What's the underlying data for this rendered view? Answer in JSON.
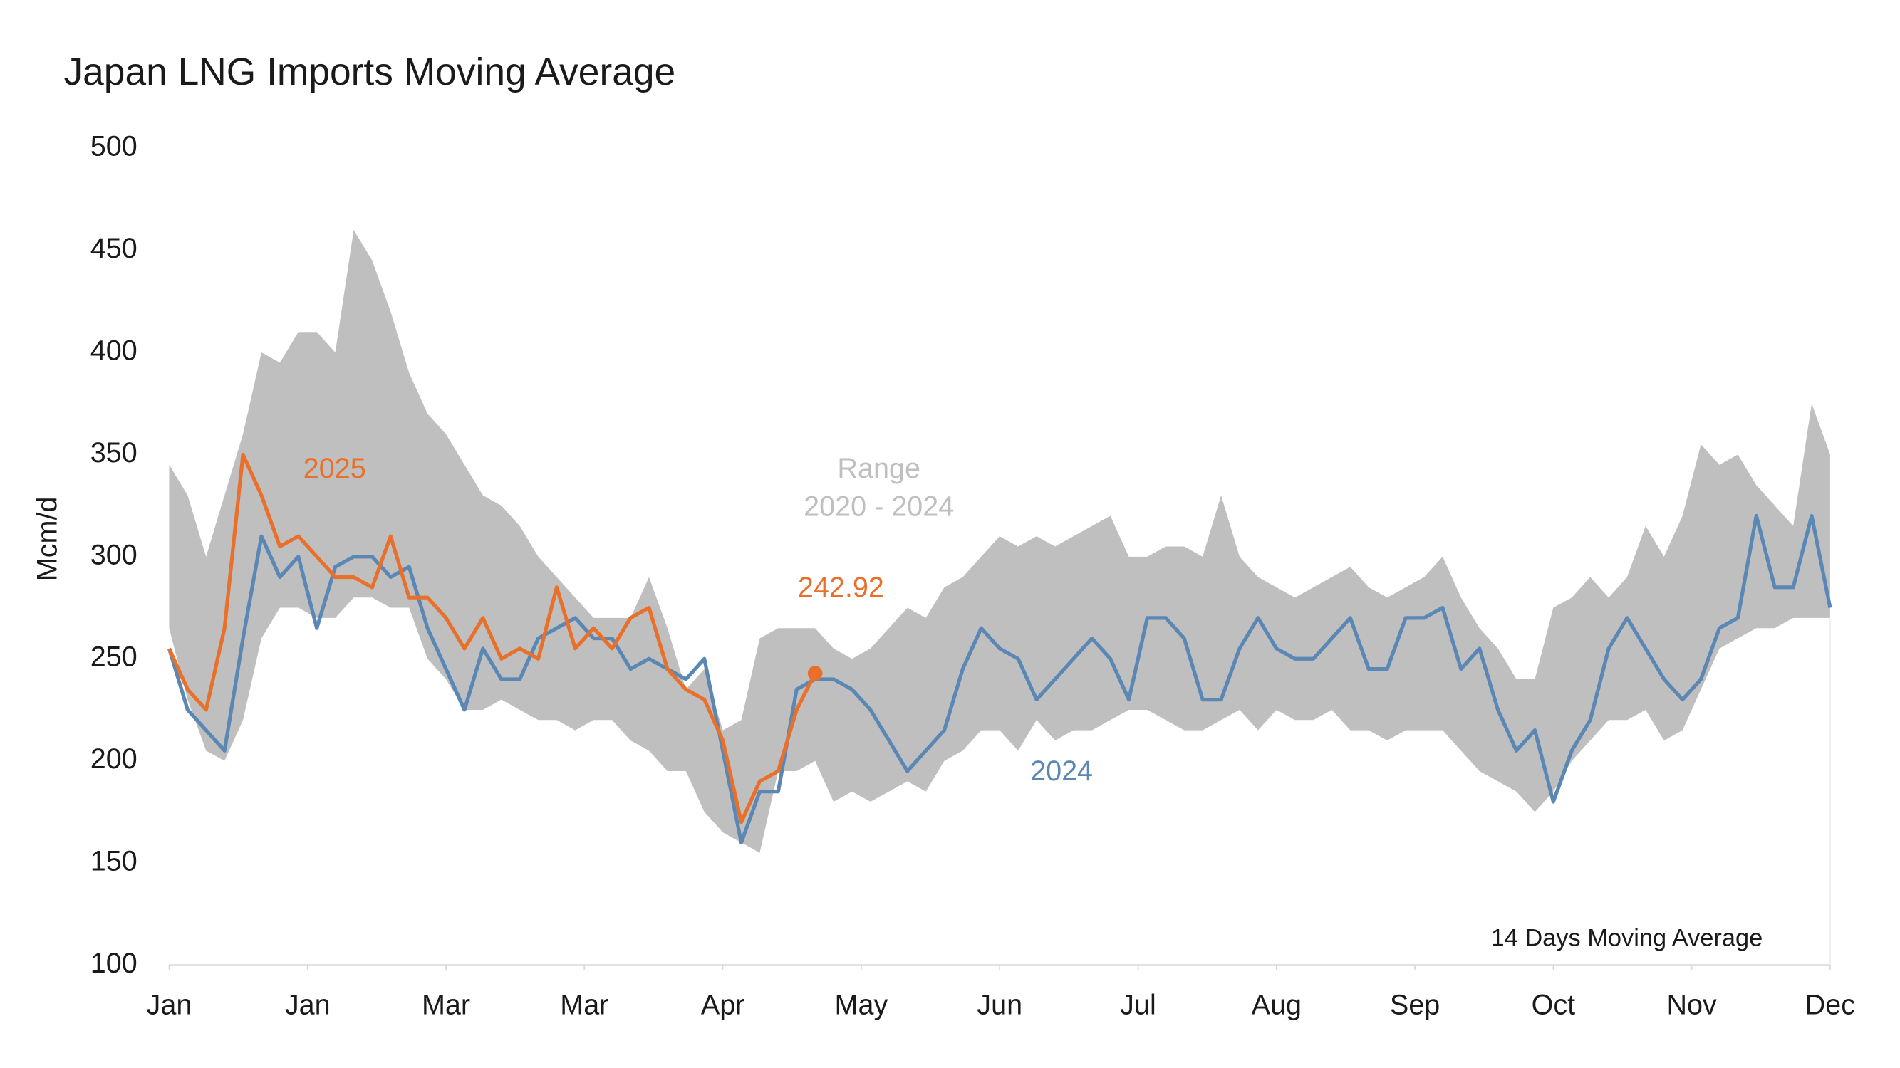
{
  "chart_data": {
    "type": "line",
    "title": "Japan LNG Imports Moving Average",
    "y_label": "Mcm/d",
    "note": "14 Days Moving Average",
    "ylim": [
      100,
      500
    ],
    "yticks": [
      100,
      150,
      200,
      250,
      300,
      350,
      400,
      450,
      500
    ],
    "xlim": [
      0,
      360
    ],
    "xticks": [
      {
        "value": 0,
        "label": "Jan"
      },
      {
        "value": 30,
        "label": "Jan"
      },
      {
        "value": 60,
        "label": "Mar"
      },
      {
        "value": 90,
        "label": "Mar"
      },
      {
        "value": 120,
        "label": "Apr"
      },
      {
        "value": 150,
        "label": "May"
      },
      {
        "value": 180,
        "label": "Jun"
      },
      {
        "value": 210,
        "label": "Jul"
      },
      {
        "value": 240,
        "label": "Aug"
      },
      {
        "value": 270,
        "label": "Sep"
      },
      {
        "value": 300,
        "label": "Oct"
      },
      {
        "value": 330,
        "label": "Nov"
      },
      {
        "value": 360,
        "label": "Dec"
      }
    ],
    "x": [
      0,
      4,
      8,
      12,
      16,
      20,
      24,
      28,
      32,
      36,
      40,
      44,
      48,
      52,
      56,
      60,
      64,
      68,
      72,
      76,
      80,
      84,
      88,
      92,
      96,
      100,
      104,
      108,
      112,
      116,
      120,
      124,
      128,
      132,
      136,
      140,
      144,
      148,
      152,
      156,
      160,
      164,
      168,
      172,
      176,
      180,
      184,
      188,
      192,
      196,
      200,
      204,
      208,
      212,
      216,
      220,
      224,
      228,
      232,
      236,
      240,
      244,
      248,
      252,
      256,
      260,
      264,
      268,
      272,
      276,
      280,
      284,
      288,
      292,
      296,
      300,
      304,
      308,
      312,
      316,
      320,
      324,
      328,
      332,
      336,
      340,
      344,
      348,
      352,
      356,
      360
    ],
    "band": {
      "name": [
        "Range",
        "2020 - 2024"
      ],
      "color": "#bfbfbf",
      "upper": [
        345,
        330,
        300,
        330,
        360,
        400,
        395,
        410,
        410,
        400,
        460,
        445,
        420,
        390,
        370,
        360,
        345,
        330,
        325,
        315,
        300,
        290,
        280,
        270,
        270,
        270,
        290,
        265,
        235,
        245,
        215,
        220,
        260,
        265,
        265,
        265,
        255,
        250,
        255,
        265,
        275,
        270,
        285,
        290,
        300,
        310,
        305,
        310,
        305,
        310,
        315,
        320,
        300,
        300,
        305,
        305,
        300,
        330,
        300,
        290,
        285,
        280,
        285,
        290,
        295,
        285,
        280,
        285,
        290,
        300,
        280,
        265,
        255,
        240,
        240,
        275,
        280,
        290,
        280,
        290,
        315,
        300,
        320,
        355,
        345,
        350,
        335,
        325,
        315,
        375,
        350
      ],
      "lower": [
        265,
        230,
        205,
        200,
        220,
        260,
        275,
        275,
        270,
        270,
        280,
        280,
        275,
        275,
        250,
        240,
        225,
        225,
        230,
        225,
        220,
        220,
        215,
        220,
        220,
        210,
        205,
        195,
        195,
        175,
        165,
        160,
        155,
        195,
        195,
        200,
        180,
        185,
        180,
        185,
        190,
        185,
        200,
        205,
        215,
        215,
        205,
        220,
        210,
        215,
        215,
        220,
        225,
        225,
        220,
        215,
        215,
        220,
        225,
        215,
        225,
        220,
        220,
        225,
        215,
        215,
        210,
        215,
        215,
        215,
        205,
        195,
        190,
        185,
        175,
        185,
        200,
        210,
        220,
        220,
        225,
        210,
        215,
        235,
        255,
        260,
        265,
        265,
        270,
        270,
        270
      ]
    },
    "series": [
      {
        "name": "2025",
        "color": "#e8702a",
        "values": [
          255,
          235,
          225,
          265,
          350,
          330,
          305,
          310,
          300,
          290,
          290,
          285,
          310,
          280,
          280,
          270,
          255,
          270,
          250,
          255,
          250,
          285,
          255,
          265,
          255,
          270,
          275,
          245,
          235,
          230,
          210,
          170,
          190,
          195,
          225,
          242.92,
          null,
          null,
          null,
          null,
          null,
          null,
          null,
          null,
          null,
          null,
          null,
          null,
          null,
          null,
          null,
          null,
          null,
          null,
          null,
          null,
          null,
          null,
          null,
          null,
          null,
          null,
          null,
          null,
          null,
          null,
          null,
          null,
          null,
          null,
          null,
          null,
          null,
          null,
          null,
          null,
          null,
          null,
          null,
          null,
          null,
          null,
          null,
          null,
          null,
          null,
          null,
          null,
          null,
          null,
          null
        ]
      },
      {
        "name": "2024",
        "color": "#5b87b5",
        "values": [
          255,
          225,
          215,
          205,
          260,
          310,
          290,
          300,
          265,
          295,
          300,
          300,
          290,
          295,
          265,
          245,
          225,
          255,
          240,
          240,
          260,
          265,
          270,
          260,
          260,
          245,
          250,
          245,
          240,
          250,
          205,
          160,
          185,
          185,
          235,
          240,
          240,
          235,
          225,
          210,
          195,
          205,
          215,
          245,
          265,
          255,
          250,
          230,
          240,
          250,
          260,
          250,
          230,
          270,
          270,
          260,
          230,
          230,
          255,
          270,
          255,
          250,
          250,
          260,
          270,
          245,
          245,
          270,
          270,
          275,
          245,
          255,
          225,
          205,
          215,
          180,
          205,
          220,
          255,
          270,
          255,
          240,
          230,
          240,
          265,
          270,
          320,
          285,
          285,
          320,
          275
        ]
      }
    ]
  }
}
